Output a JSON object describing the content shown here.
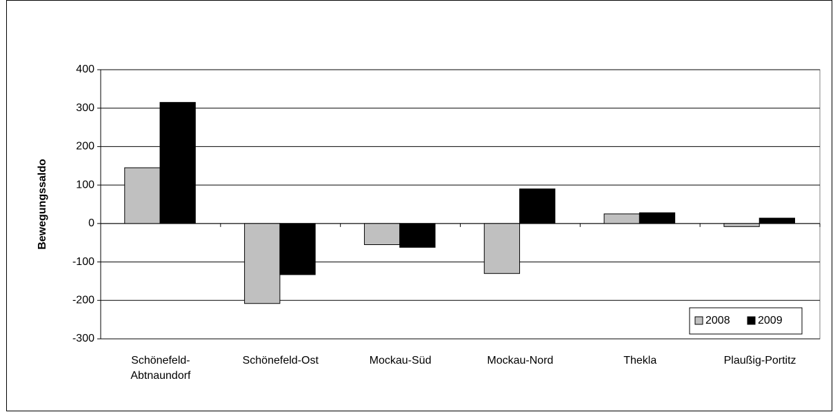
{
  "chart_data": {
    "type": "bar",
    "y_label": "Bewegungssaldo",
    "categories": [
      "Schönefeld-Abtnaundorf",
      "Schönefeld-Ost",
      "Mockau-Süd",
      "Mockau-Nord",
      "Thekla",
      "Plaußig-Portitz"
    ],
    "series": [
      {
        "name": "2008",
        "color": "#c0c0c0",
        "values": [
          145,
          -208,
          -55,
          -130,
          25,
          -8
        ]
      },
      {
        "name": "2009",
        "color": "#000000",
        "values": [
          315,
          -133,
          -62,
          90,
          28,
          14
        ]
      }
    ],
    "ylim": [
      -300,
      400
    ],
    "yticks": [
      -300,
      -200,
      -100,
      0,
      100,
      200,
      300,
      400
    ],
    "grid": true,
    "legend": "bottom-right"
  }
}
